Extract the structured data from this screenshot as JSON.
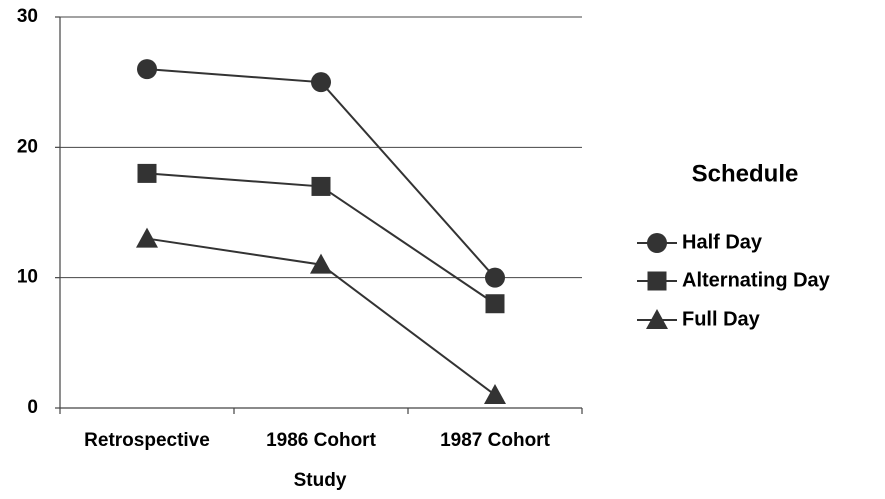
{
  "chart_data": {
    "type": "line",
    "x_label": "Study",
    "categories": [
      "Retrospective",
      "1986 Cohort",
      "1987 Cohort"
    ],
    "series": [
      {
        "name": "Half Day",
        "color": "#333333",
        "marker": "circle",
        "values": [
          26,
          25,
          10
        ]
      },
      {
        "name": "Alternating Day",
        "color": "#333333",
        "marker": "square",
        "values": [
          18,
          17,
          8
        ]
      },
      {
        "name": "Full Day",
        "color": "#333333",
        "marker": "triangle",
        "values": [
          13,
          11,
          1
        ]
      }
    ],
    "ylim": [
      0,
      30
    ],
    "yticks": [
      0,
      10,
      20,
      30
    ],
    "grid": true,
    "legend_title": "Schedule",
    "legend": "right"
  }
}
